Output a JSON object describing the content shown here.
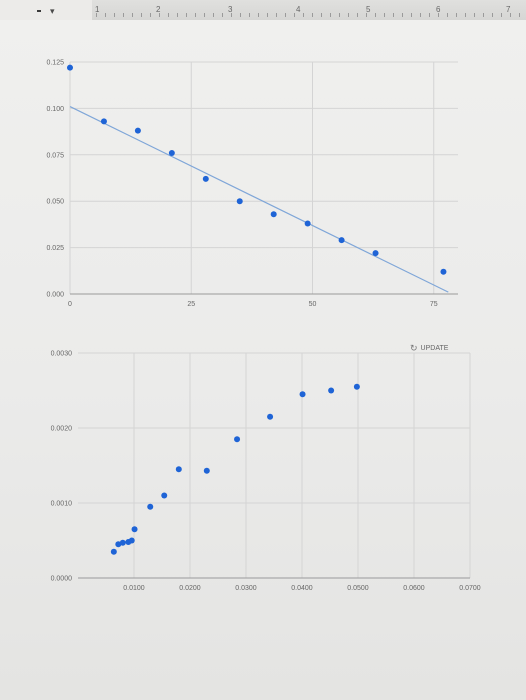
{
  "ruler": {
    "numbers": [
      "1",
      "2",
      "3",
      "4",
      "5",
      "6",
      "7"
    ]
  },
  "update_button": {
    "label": "UPDATE",
    "icon": "refresh-icon"
  },
  "colors": {
    "point": "#1f64d6",
    "trendline": "#7fa6d8",
    "grid": "#d4d4d4"
  },
  "chart_data": [
    {
      "type": "scatter",
      "title": "",
      "xlabel": "",
      "ylabel": "",
      "xlim": [
        0,
        80
      ],
      "ylim": [
        0,
        0.125
      ],
      "grid": true,
      "x_ticks": [
        0,
        25,
        50,
        75
      ],
      "x_tick_labels": [
        "0",
        "25",
        "50",
        "75"
      ],
      "y_ticks": [
        0,
        0.025,
        0.05,
        0.075,
        0.1,
        0.125
      ],
      "y_tick_labels": [
        "0.000",
        "0.025",
        "0.050",
        "0.075",
        "0.100",
        "0.125"
      ],
      "series": [
        {
          "x": [
            0,
            7,
            14,
            21,
            28,
            35,
            42,
            49,
            56,
            63,
            77
          ],
          "y": [
            0.122,
            0.093,
            0.088,
            0.076,
            0.062,
            0.05,
            0.043,
            0.038,
            0.029,
            0.022,
            0.012
          ]
        }
      ],
      "trendline": {
        "x": [
          0,
          78
        ],
        "y": [
          0.101,
          0.001
        ]
      }
    },
    {
      "type": "scatter",
      "title": "",
      "xlabel": "",
      "ylabel": "",
      "xlim": [
        0,
        0.07
      ],
      "ylim": [
        0,
        0.003
      ],
      "grid": true,
      "x_ticks": [
        0.01,
        0.02,
        0.03,
        0.04,
        0.05,
        0.06,
        0.07
      ],
      "x_tick_labels": [
        "0.0100",
        "0.0200",
        "0.0300",
        "0.0400",
        "0.0500",
        "0.0600",
        "0.0700"
      ],
      "y_ticks": [
        0,
        0.001,
        0.002,
        0.003
      ],
      "y_tick_labels": [
        "0.0000",
        "0.0010",
        "0.0020",
        "0.0030"
      ],
      "series": [
        {
          "x": [
            0.0064,
            0.0072,
            0.008,
            0.009,
            0.0096,
            0.0101,
            0.0129,
            0.0154,
            0.018,
            0.023,
            0.0284,
            0.0343,
            0.0401,
            0.0452,
            0.0498
          ],
          "y": [
            0.00035,
            0.00045,
            0.00047,
            0.00048,
            0.0005,
            0.00065,
            0.00095,
            0.0011,
            0.00145,
            0.00143,
            0.00185,
            0.00215,
            0.00245,
            0.0025,
            0.00255
          ]
        }
      ]
    }
  ]
}
